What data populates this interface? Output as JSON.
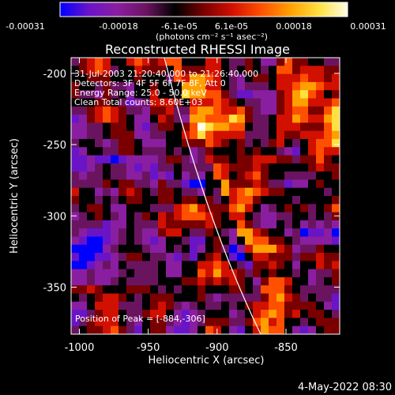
{
  "colorbar": {
    "ticks": [
      "-0.00031",
      "-0.00018",
      "-6.1e-05",
      "6.1e-05",
      "0.00018",
      "0.00031"
    ],
    "unit_label": "(photons cm⁻² s⁻¹ asec⁻²)",
    "colormap": [
      "#0000ff",
      "#6a14c8",
      "#8a1ea0",
      "#6a1460",
      "#000000",
      "#7a0000",
      "#d21000",
      "#ff5000",
      "#ffa000",
      "#ffe040",
      "#ffffe6"
    ]
  },
  "title": "Reconstructed RHESSI Image",
  "xlabel": "Heliocentric X (arcsec)",
  "ylabel": "Heliocentric Y (arcsec)",
  "x_ticks": [
    "-1000",
    "-950",
    "-900",
    "-850"
  ],
  "y_ticks": [
    "-200",
    "-250",
    "-300",
    "-350"
  ],
  "x_tick_values": [
    -1000,
    -950,
    -900,
    -850
  ],
  "y_tick_values": [
    -200,
    -250,
    -300,
    -350
  ],
  "xlim": [
    -1006,
    -811
  ],
  "ylim": [
    -383,
    -189
  ],
  "info": {
    "line1": "31-Jul-2003 21:20:40.000 to 21:26:40.000",
    "line2": "Detectors: 3F 4F 5F 6F 7F 8F, Att 0",
    "line3": "Energy Range: 25.0 - 50.0 keV",
    "line4": "Clean     Total counts: 8.60E+03"
  },
  "peak_text": "Position of Peak = [-884,-306]",
  "date_stamp": "4-May-2022 08:30"
}
